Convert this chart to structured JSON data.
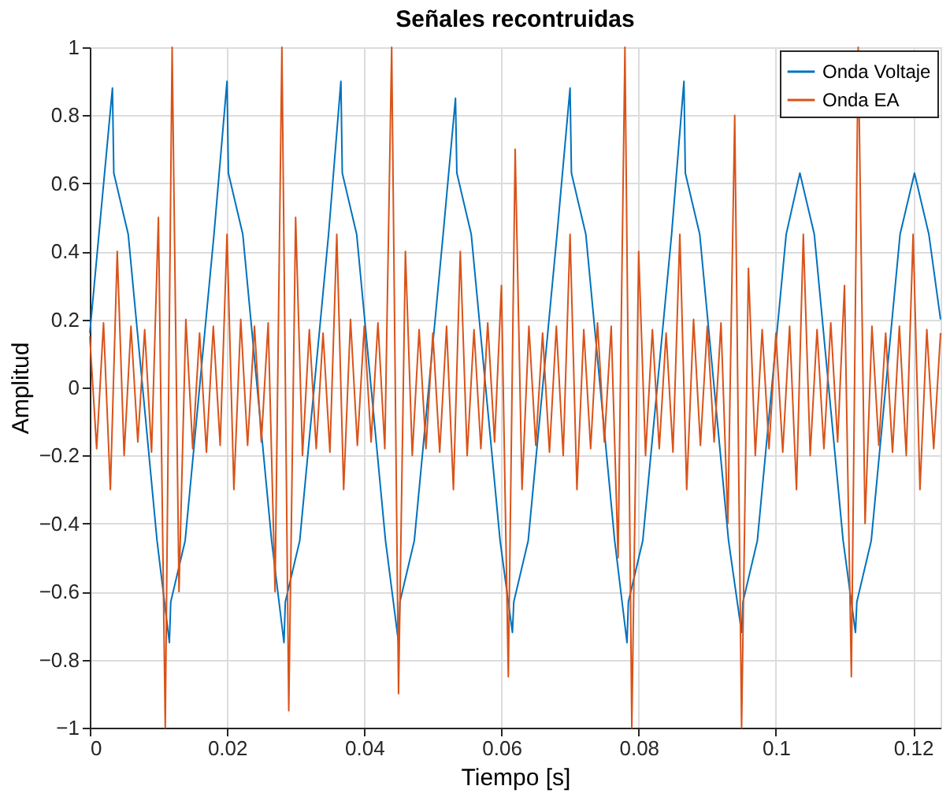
{
  "chart_data": {
    "type": "line",
    "title": "Señales recontruidas",
    "xlabel": "Tiempo [s]",
    "ylabel": "Amplitud",
    "xlim": [
      0,
      0.124
    ],
    "xticks": [
      0,
      0.02,
      0.04,
      0.06,
      0.08,
      0.1,
      0.12
    ],
    "ylim": [
      -1,
      1
    ],
    "yticks": [
      -1,
      -0.8,
      -0.6,
      -0.4,
      -0.2,
      0,
      0.2,
      0.4,
      0.6,
      0.8,
      1
    ],
    "grid": true,
    "legend": "top right",
    "line_style": "solid",
    "marker": "none",
    "series": [
      {
        "name": "Onda Voltaje",
        "color": "#0072bd",
        "x": [
          0,
          0.0033,
          0.0035,
          0.0056,
          0.0077,
          0.0098,
          0.0116,
          0.0118,
          0.0139,
          0.016,
          0.0181,
          0.02,
          0.0202,
          0.0223,
          0.0244,
          0.0265,
          0.0283,
          0.0285,
          0.0306,
          0.0327,
          0.0348,
          0.0366,
          0.0368,
          0.0389,
          0.041,
          0.0431,
          0.045,
          0.0452,
          0.0473,
          0.0494,
          0.0515,
          0.0533,
          0.0535,
          0.0556,
          0.0577,
          0.0598,
          0.0616,
          0.0618,
          0.0639,
          0.066,
          0.0681,
          0.07,
          0.0702,
          0.0723,
          0.0744,
          0.0765,
          0.0783,
          0.0785,
          0.0806,
          0.0827,
          0.0848,
          0.0866,
          0.0868,
          0.0889,
          0.091,
          0.0931,
          0.095,
          0.0952,
          0.0973,
          0.0994,
          0.1015,
          0.1035,
          0.1056,
          0.1077,
          0.1098,
          0.1116,
          0.1118,
          0.1139,
          0.116,
          0.1181,
          0.1202,
          0.1223,
          0.124
        ],
        "values": [
          0.16,
          0.88,
          0.63,
          0.45,
          0,
          -0.45,
          -0.75,
          -0.63,
          -0.45,
          0,
          0.45,
          0.9,
          0.63,
          0.45,
          0,
          -0.45,
          -0.75,
          -0.63,
          -0.45,
          0,
          0.45,
          0.9,
          0.63,
          0.45,
          0,
          -0.45,
          -0.75,
          -0.63,
          -0.45,
          0,
          0.45,
          0.85,
          0.63,
          0.45,
          0,
          -0.45,
          -0.72,
          -0.63,
          -0.45,
          0,
          0.45,
          0.88,
          0.63,
          0.45,
          0,
          -0.45,
          -0.75,
          -0.63,
          -0.45,
          0,
          0.45,
          0.9,
          0.63,
          0.45,
          0,
          -0.45,
          -0.72,
          -0.63,
          -0.45,
          0,
          0.45,
          0.63,
          0.45,
          0,
          -0.45,
          -0.72,
          -0.63,
          -0.45,
          0,
          0.45,
          0.63,
          0.45,
          0.2
        ]
      },
      {
        "name": "Onda EA",
        "color": "#d95319",
        "x": [
          0,
          0.001,
          0.002,
          0.003,
          0.004,
          0.005,
          0.006,
          0.007,
          0.008,
          0.009,
          0.01,
          0.011,
          0.012,
          0.013,
          0.014,
          0.015,
          0.016,
          0.017,
          0.018,
          0.019,
          0.02,
          0.021,
          0.022,
          0.023,
          0.024,
          0.025,
          0.026,
          0.027,
          0.028,
          0.029,
          0.03,
          0.031,
          0.032,
          0.033,
          0.034,
          0.035,
          0.036,
          0.037,
          0.038,
          0.039,
          0.04,
          0.041,
          0.042,
          0.043,
          0.044,
          0.045,
          0.046,
          0.047,
          0.048,
          0.049,
          0.05,
          0.051,
          0.052,
          0.053,
          0.054,
          0.055,
          0.056,
          0.057,
          0.058,
          0.059,
          0.06,
          0.061,
          0.062,
          0.063,
          0.064,
          0.065,
          0.066,
          0.067,
          0.068,
          0.069,
          0.07,
          0.071,
          0.072,
          0.073,
          0.074,
          0.075,
          0.076,
          0.077,
          0.078,
          0.079,
          0.08,
          0.081,
          0.082,
          0.083,
          0.084,
          0.085,
          0.086,
          0.087,
          0.088,
          0.089,
          0.09,
          0.091,
          0.092,
          0.093,
          0.094,
          0.095,
          0.096,
          0.097,
          0.098,
          0.099,
          0.1,
          0.101,
          0.102,
          0.103,
          0.104,
          0.105,
          0.106,
          0.107,
          0.108,
          0.109,
          0.11,
          0.111,
          0.112,
          0.113,
          0.114,
          0.115,
          0.116,
          0.117,
          0.118,
          0.119,
          0.12,
          0.121,
          0.122,
          0.123,
          0.124
        ],
        "values": [
          0.15,
          -0.18,
          0.19,
          -0.3,
          0.4,
          -0.2,
          0.18,
          -0.16,
          0.17,
          -0.19,
          0.5,
          -1.0,
          1.0,
          -0.6,
          0.2,
          -0.18,
          0.16,
          -0.19,
          0.18,
          -0.17,
          0.45,
          -0.3,
          0.2,
          -0.17,
          0.18,
          -0.16,
          0.19,
          -0.6,
          1.0,
          -0.95,
          0.5,
          -0.2,
          0.17,
          -0.18,
          0.16,
          -0.19,
          0.45,
          -0.3,
          0.2,
          -0.17,
          0.18,
          -0.16,
          0.19,
          -0.18,
          1.0,
          -0.9,
          0.4,
          -0.2,
          0.17,
          -0.18,
          0.16,
          -0.19,
          0.18,
          -0.3,
          0.4,
          -0.2,
          0.17,
          -0.18,
          0.19,
          -0.16,
          0.3,
          -0.85,
          0.7,
          -0.3,
          0.18,
          -0.17,
          0.16,
          -0.19,
          0.18,
          -0.2,
          0.45,
          -0.3,
          0.17,
          -0.18,
          0.19,
          -0.16,
          0.18,
          -0.5,
          1.0,
          -1.0,
          0.4,
          -0.2,
          0.17,
          -0.18,
          0.16,
          -0.19,
          0.45,
          -0.3,
          0.2,
          -0.17,
          0.18,
          -0.16,
          0.19,
          -0.4,
          0.8,
          -1.0,
          0.35,
          -0.2,
          0.17,
          -0.18,
          0.16,
          -0.19,
          0.18,
          -0.3,
          0.45,
          -0.2,
          0.17,
          -0.18,
          0.19,
          -0.16,
          0.3,
          -0.85,
          1.0,
          -0.4,
          0.18,
          -0.17,
          0.16,
          -0.19,
          0.18,
          -0.2,
          0.45,
          -0.3,
          0.17,
          -0.18,
          0.16
        ]
      }
    ]
  }
}
